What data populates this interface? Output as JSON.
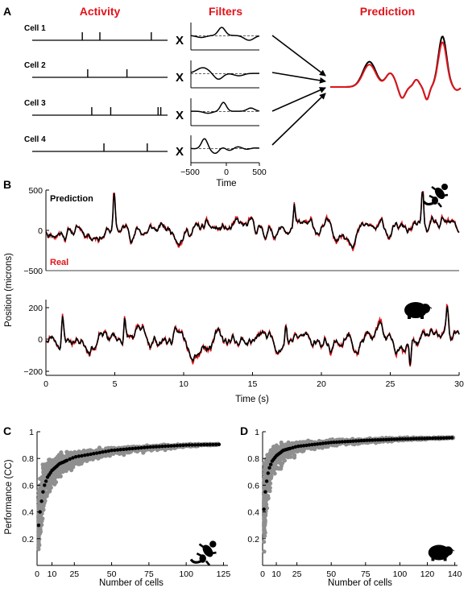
{
  "colors": {
    "black": "#000000",
    "red": "#e0141b",
    "gray": "#8f8f8f"
  },
  "panel_a": {
    "letter": "A",
    "headers": {
      "activity": "Activity",
      "filters": "Filters",
      "prediction": "Prediction"
    },
    "cells": [
      {
        "label": "Cell 1",
        "spike_times": [
          0.37,
          0.5,
          0.88
        ]
      },
      {
        "label": "Cell 2",
        "spike_times": [
          0.41,
          0.7
        ]
      },
      {
        "label": "Cell 3",
        "spike_times": [
          0.44,
          0.58,
          0.93,
          0.95
        ]
      },
      {
        "label": "Cell 4",
        "spike_times": [
          0.53,
          0.85
        ]
      }
    ],
    "multiply_symbol": "X",
    "filter_axis": {
      "xlabel": "Time",
      "ticks": [
        "−500",
        "0",
        "500"
      ],
      "xlim": [
        -500,
        500
      ]
    }
  },
  "panel_b": {
    "letter": "B",
    "ylabel": "Position (microns)",
    "xlabel": "Time (s)",
    "legend": {
      "prediction": "Prediction",
      "real": "Real"
    },
    "top": {
      "ylim": [
        -500,
        500
      ],
      "yticks": [
        "500",
        "0",
        "−500"
      ],
      "animal_icon": "gecko-icon"
    },
    "bottom": {
      "ylim": [
        -220,
        240
      ],
      "yticks": [
        "200",
        "0",
        "−200"
      ],
      "animal_icon": "guinea-pig-icon"
    },
    "xticks": [
      "0",
      "5",
      "10",
      "15",
      "20",
      "25",
      "30"
    ],
    "xlim": [
      0,
      30
    ]
  },
  "panel_c": {
    "letter": "C",
    "ylabel": "Performance (CC)",
    "xlabel": "Number of cells",
    "xticks": [
      "0",
      "10",
      "25",
      "50",
      "75",
      "100",
      "125"
    ],
    "yticks": [
      "1",
      "0.8",
      "0.6",
      "0.4",
      "0.2"
    ],
    "xlim": [
      0,
      128
    ],
    "ylim": [
      0,
      1
    ],
    "animal_icon": "gecko-icon"
  },
  "panel_d": {
    "letter": "D",
    "xlabel": "Number of cells",
    "xticks": [
      "0",
      "10",
      "25",
      "50",
      "75",
      "100",
      "120",
      "140"
    ],
    "yticks": [
      "1",
      "0.8",
      "0.6",
      "0.4",
      "0.2"
    ],
    "xlim": [
      0,
      142
    ],
    "ylim": [
      0,
      1
    ],
    "animal_icon": "guinea-pig-icon"
  },
  "chart_data": [
    {
      "type": "line",
      "panel": "B-top",
      "x_range": [
        0,
        30
      ],
      "ylim": [
        -500,
        500
      ],
      "series": [
        {
          "name": "Prediction",
          "color": "#000000"
        },
        {
          "name": "Real",
          "color": "#e0141b"
        }
      ]
    },
    {
      "type": "line",
      "panel": "B-bottom",
      "x_range": [
        0,
        30
      ],
      "ylim": [
        -220,
        240
      ],
      "series": [
        {
          "color": "#000000"
        },
        {
          "color": "#e0141b"
        }
      ]
    },
    {
      "type": "scatter",
      "panel": "C",
      "xlabel": "Number of cells",
      "ylabel": "Performance (CC)",
      "xlim": [
        0,
        128
      ],
      "ylim": [
        0,
        1
      ],
      "mean_curve": {
        "x": [
          1,
          2,
          3,
          4,
          5,
          7,
          10,
          15,
          25,
          50,
          75,
          100,
          122
        ],
        "y": [
          0.3,
          0.4,
          0.48,
          0.55,
          0.6,
          0.66,
          0.71,
          0.76,
          0.81,
          0.86,
          0.885,
          0.9,
          0.905
        ]
      },
      "spread_lower": {
        "x": [
          1,
          2,
          3,
          5,
          10,
          25,
          50,
          100,
          122
        ],
        "y": [
          0.03,
          0.12,
          0.22,
          0.38,
          0.55,
          0.72,
          0.81,
          0.88,
          0.9
        ]
      },
      "spread_upper": {
        "x": [
          1,
          2,
          3,
          5,
          10,
          25,
          50,
          100,
          122
        ],
        "y": [
          0.62,
          0.72,
          0.78,
          0.82,
          0.85,
          0.87,
          0.89,
          0.91,
          0.91
        ]
      }
    },
    {
      "type": "scatter",
      "panel": "D",
      "xlabel": "Number of cells",
      "xlim": [
        0,
        142
      ],
      "ylim": [
        0,
        1
      ],
      "mean_curve": {
        "x": [
          1,
          2,
          3,
          4,
          5,
          7,
          10,
          15,
          25,
          50,
          75,
          100,
          120,
          139
        ],
        "y": [
          0.42,
          0.55,
          0.63,
          0.69,
          0.73,
          0.78,
          0.82,
          0.86,
          0.89,
          0.92,
          0.935,
          0.945,
          0.95,
          0.955
        ]
      },
      "spread_lower": {
        "x": [
          1,
          2,
          3,
          5,
          10,
          25,
          50,
          100,
          139
        ],
        "y": [
          0.02,
          0.2,
          0.35,
          0.5,
          0.66,
          0.82,
          0.88,
          0.93,
          0.95
        ]
      },
      "spread_upper": {
        "x": [
          1,
          2,
          3,
          5,
          10,
          25,
          50,
          100,
          139
        ],
        "y": [
          0.82,
          0.86,
          0.89,
          0.91,
          0.93,
          0.94,
          0.95,
          0.96,
          0.96
        ]
      }
    }
  ]
}
